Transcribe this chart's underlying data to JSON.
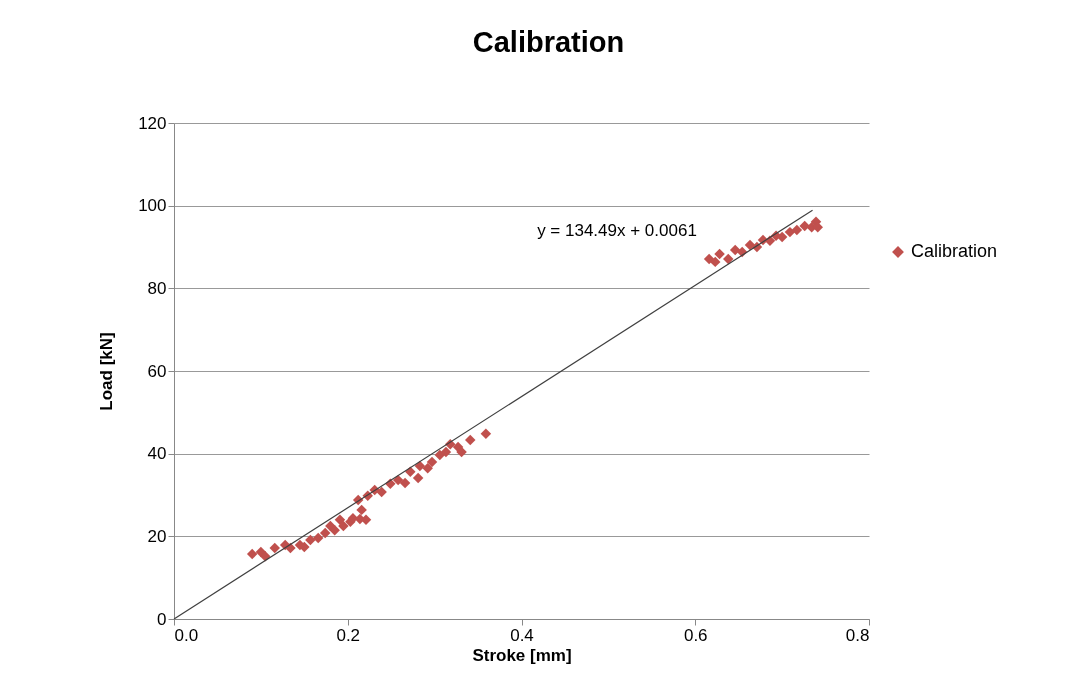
{
  "chart_data": {
    "type": "scatter",
    "title": "Calibration",
    "xlabel": "Stroke [mm]",
    "ylabel": "Load [kN]",
    "xlim": [
      0,
      0.8
    ],
    "xticks": [
      {
        "value": 0,
        "label": "0.0"
      },
      0.2,
      0.4,
      0.6,
      0.8
    ],
    "ylim": [
      0,
      120
    ],
    "yticks": [
      0,
      20,
      40,
      60,
      80,
      100,
      120
    ],
    "grid": "y",
    "legend": "right",
    "marker": "diamond",
    "annotations": [
      "y = 134.49x + 0.0061"
    ],
    "series": [
      {
        "name": "Calibration",
        "color": "#c0504d",
        "x": [
          0.09,
          0.1,
          0.105,
          0.116,
          0.128,
          0.134,
          0.145,
          0.15,
          0.157,
          0.166,
          0.174,
          0.18,
          0.185,
          0.191,
          0.195,
          0.203,
          0.206,
          0.212,
          0.214,
          0.216,
          0.221,
          0.223,
          0.231,
          0.239,
          0.249,
          0.258,
          0.266,
          0.272,
          0.281,
          0.283,
          0.292,
          0.297,
          0.306,
          0.313,
          0.318,
          0.327,
          0.331,
          0.341,
          0.359,
          0.616,
          0.623,
          0.628,
          0.638,
          0.646,
          0.654,
          0.663,
          0.671,
          0.678,
          0.686,
          0.693,
          0.7,
          0.709,
          0.717,
          0.726,
          0.734,
          0.739,
          0.741
        ],
        "values": [
          15.7,
          16.2,
          15.2,
          17.2,
          17.9,
          17.2,
          17.9,
          17.4,
          19.1,
          19.6,
          20.8,
          22.5,
          21.5,
          24,
          22.5,
          23.5,
          24.4,
          28.8,
          24.2,
          26.4,
          24,
          29.8,
          31.2,
          30.7,
          32.7,
          33.6,
          32.9,
          35.6,
          34.1,
          37,
          36.5,
          38,
          39.7,
          40.4,
          42.3,
          41.6,
          40.4,
          43.3,
          44.8,
          87.1,
          86.4,
          88.3,
          87.1,
          89.3,
          88.8,
          90.5,
          90,
          91.7,
          91.5,
          92.7,
          92.4,
          93.6,
          94.1,
          95.1,
          94.8,
          96.1,
          94.8
        ]
      },
      {
        "color": "#404040",
        "type": "line",
        "marker": "none",
        "x": [
          0,
          0.735
        ],
        "values": [
          0,
          98.9
        ]
      }
    ]
  }
}
